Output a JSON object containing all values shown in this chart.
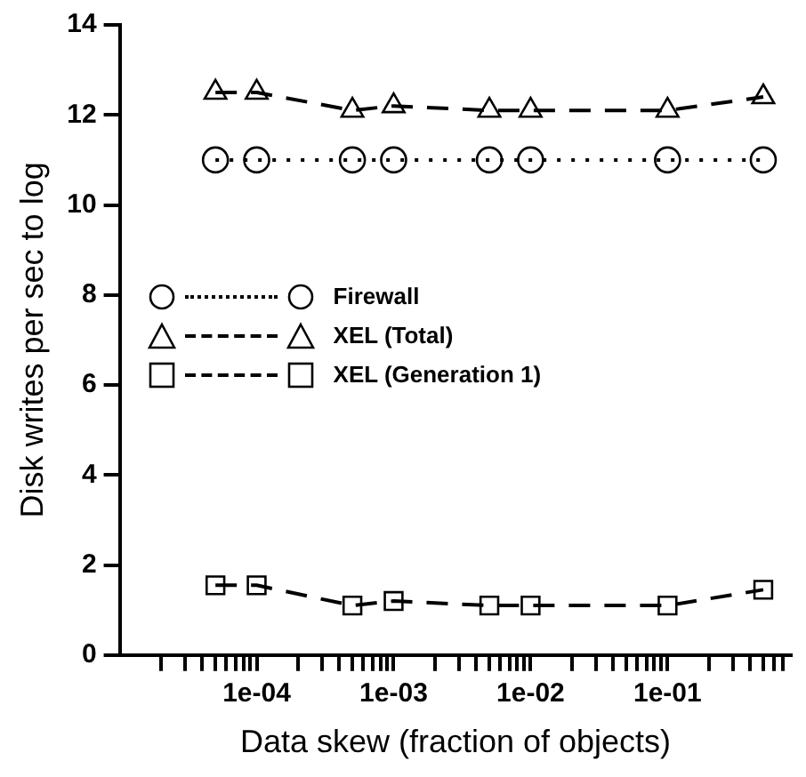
{
  "chart_data": {
    "type": "line",
    "xlabel": "Data skew (fraction of objects)",
    "ylabel": "Disk writes per sec to log",
    "x": [
      5e-05,
      0.0001,
      0.0005,
      0.001,
      0.005,
      0.01,
      0.1,
      0.5
    ],
    "series": [
      {
        "name": "Firewall",
        "color": "#000000",
        "marker": "circle",
        "line_style": "dotted",
        "values": [
          11.0,
          11.0,
          11.0,
          11.0,
          11.0,
          11.0,
          11.0,
          11.0
        ]
      },
      {
        "name": "XEL (Total)",
        "color": "#000000",
        "marker": "triangle",
        "line_style": "dashed",
        "values": [
          12.5,
          12.5,
          12.1,
          12.2,
          12.1,
          12.1,
          12.1,
          12.4
        ]
      },
      {
        "name": "XEL (Generation 1)",
        "color": "#000000",
        "marker": "square",
        "line_style": "dashed",
        "values": [
          1.55,
          1.55,
          1.1,
          1.2,
          1.1,
          1.1,
          1.1,
          1.45
        ]
      }
    ],
    "log": "x",
    "xlim": [
      1e-05,
      0.8
    ],
    "xticks": [
      {
        "value": 2e-05,
        "label": null
      },
      {
        "value": 3e-05,
        "label": null
      },
      {
        "value": 4e-05,
        "label": null
      },
      {
        "value": 5e-05,
        "label": null
      },
      {
        "value": 6e-05,
        "label": null
      },
      {
        "value": 7e-05,
        "label": null
      },
      {
        "value": 8e-05,
        "label": null
      },
      {
        "value": 9e-05,
        "label": null
      },
      {
        "value": 0.0001,
        "label": "1e-04"
      },
      {
        "value": 0.0002,
        "label": null
      },
      {
        "value": 0.0003,
        "label": null
      },
      {
        "value": 0.0004,
        "label": null
      },
      {
        "value": 0.0005,
        "label": null
      },
      {
        "value": 0.0006,
        "label": null
      },
      {
        "value": 0.0007,
        "label": null
      },
      {
        "value": 0.0008,
        "label": null
      },
      {
        "value": 0.0009,
        "label": null
      },
      {
        "value": 0.001,
        "label": "1e-03"
      },
      {
        "value": 0.002,
        "label": null
      },
      {
        "value": 0.003,
        "label": null
      },
      {
        "value": 0.004,
        "label": null
      },
      {
        "value": 0.005,
        "label": null
      },
      {
        "value": 0.006,
        "label": null
      },
      {
        "value": 0.007,
        "label": null
      },
      {
        "value": 0.008,
        "label": null
      },
      {
        "value": 0.009,
        "label": null
      },
      {
        "value": 0.01,
        "label": "1e-02"
      },
      {
        "value": 0.02,
        "label": null
      },
      {
        "value": 0.03,
        "label": null
      },
      {
        "value": 0.04,
        "label": null
      },
      {
        "value": 0.05,
        "label": null
      },
      {
        "value": 0.06,
        "label": null
      },
      {
        "value": 0.07,
        "label": null
      },
      {
        "value": 0.08,
        "label": null
      },
      {
        "value": 0.09,
        "label": null
      },
      {
        "value": 0.1,
        "label": "1e-01"
      },
      {
        "value": 0.2,
        "label": null
      },
      {
        "value": 0.3,
        "label": null
      },
      {
        "value": 0.4,
        "label": null
      },
      {
        "value": 0.5,
        "label": null
      },
      {
        "value": 0.6,
        "label": null
      },
      {
        "value": 0.7,
        "label": null
      }
    ],
    "ylim": [
      0,
      14
    ],
    "yticks": [
      0,
      2,
      4,
      6,
      8,
      10,
      12,
      14
    ],
    "grid": false,
    "legend": "left"
  }
}
